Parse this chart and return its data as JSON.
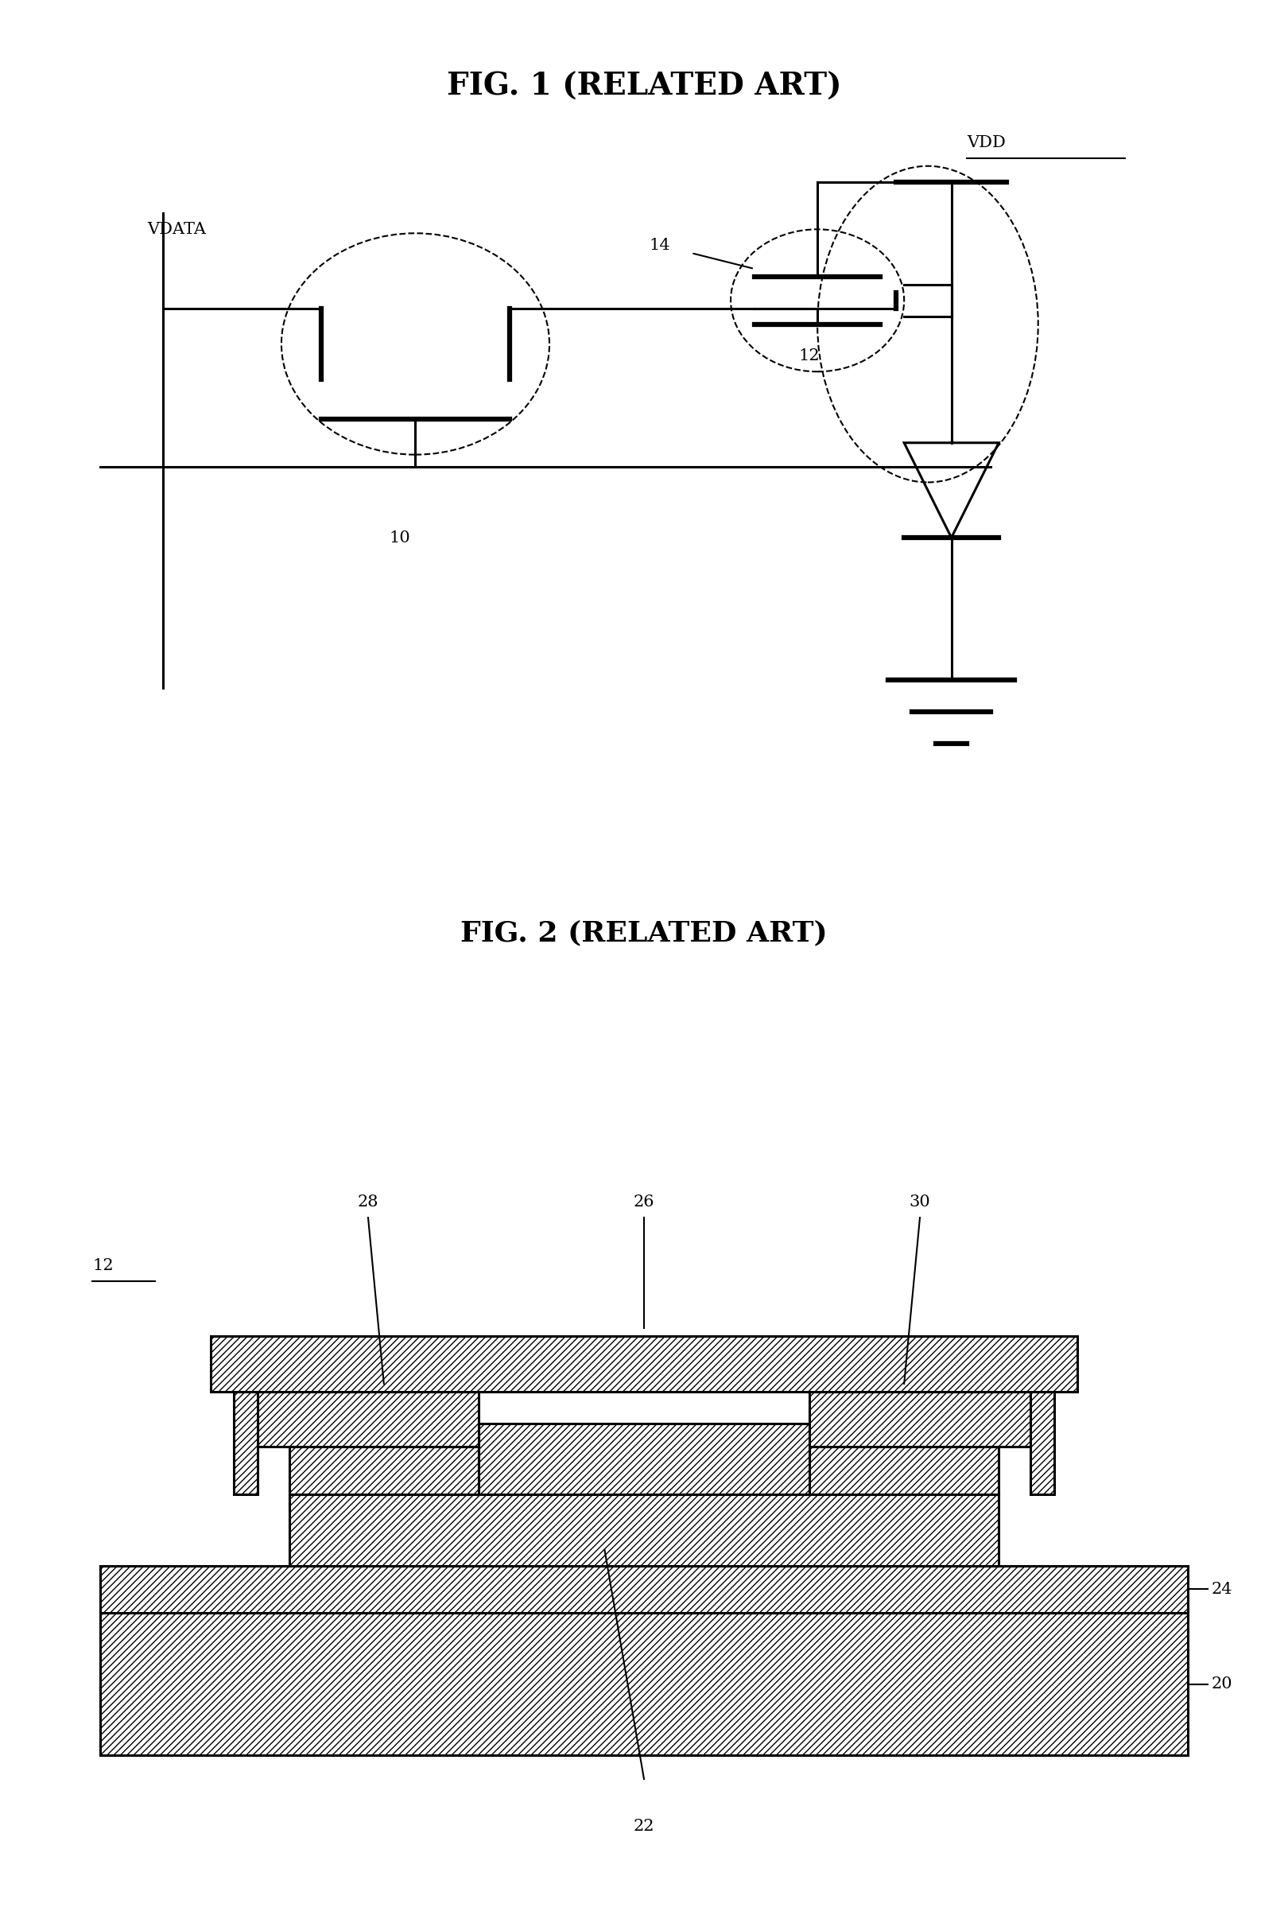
{
  "fig1_title": "FIG. 1 (RELATED ART)",
  "fig2_title": "FIG. 2 (RELATED ART)",
  "background_color": "#ffffff",
  "line_color": "#000000",
  "label_12": "12",
  "label_10": "10",
  "label_14": "14",
  "label_20": "20",
  "label_22": "22",
  "label_24": "24",
  "label_26": "26",
  "label_28": "28",
  "label_30": "30",
  "label_VDATA": "VDATA",
  "label_VDD": "VDD"
}
